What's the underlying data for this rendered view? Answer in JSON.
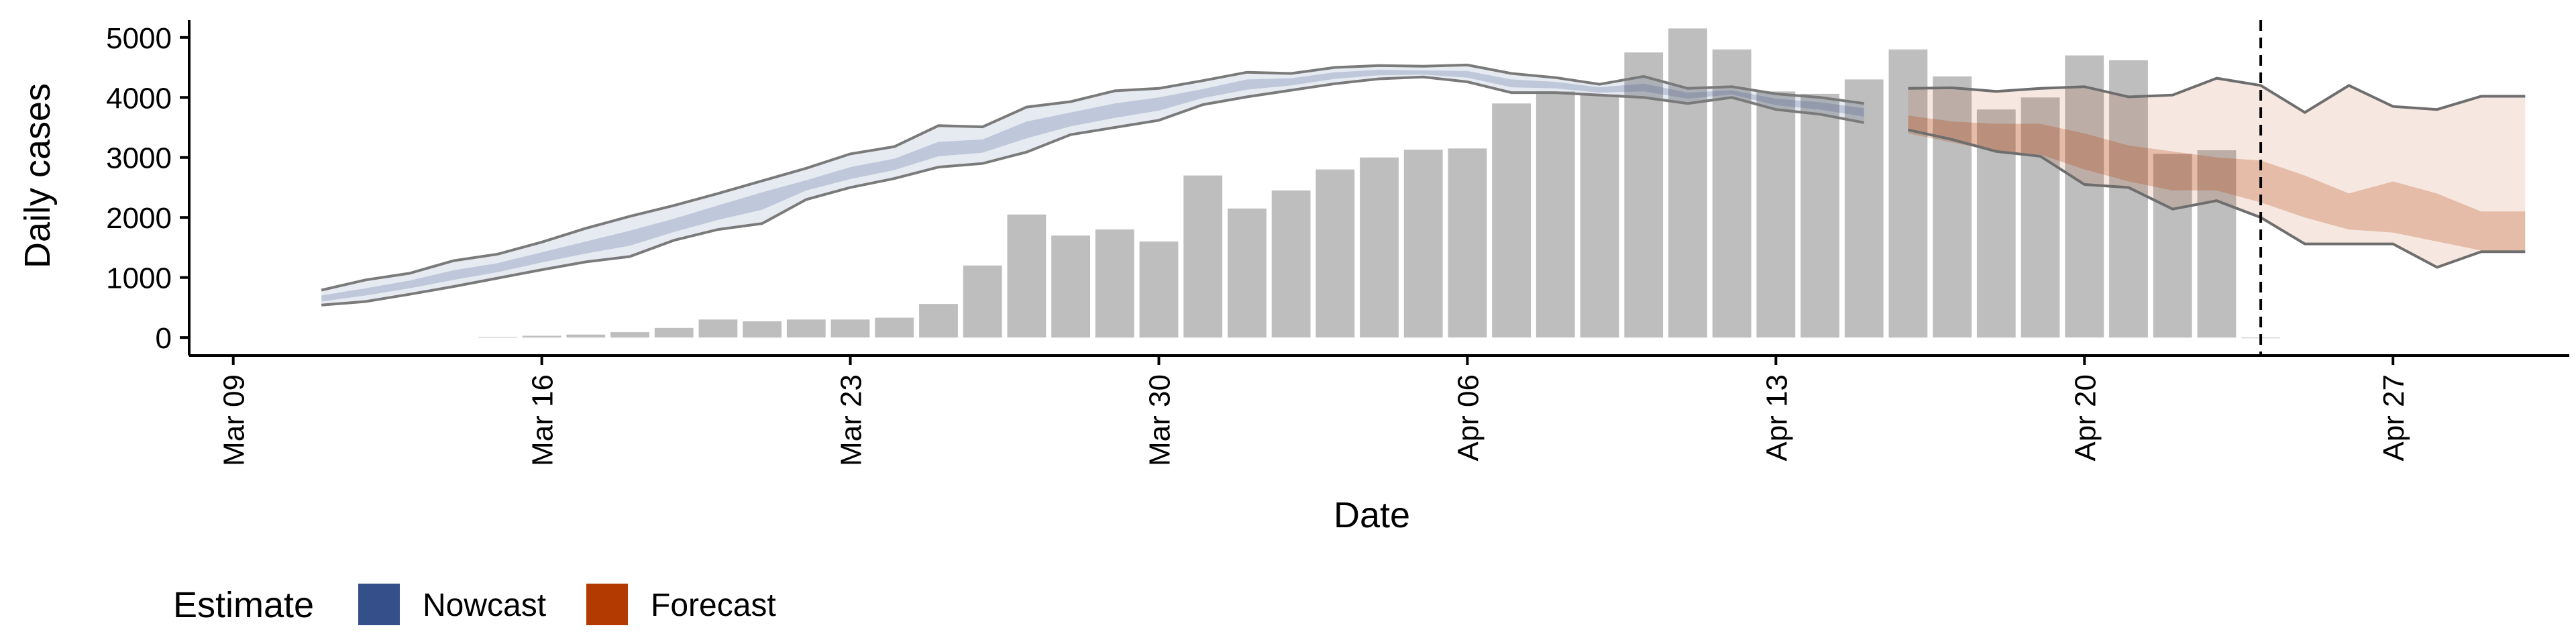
{
  "chart_data": {
    "type": "bar",
    "title": "",
    "xlabel": "Date",
    "ylabel": "Daily cases",
    "x_ticks": [
      "Mar 09",
      "Mar 16",
      "Mar 23",
      "Mar 30",
      "Apr 06",
      "Apr 13",
      "Apr 20",
      "Apr 27"
    ],
    "y_ticks": [
      0,
      1000,
      2000,
      3000,
      4000,
      5000
    ],
    "ylim": [
      -300,
      5400
    ],
    "xlim": [
      "2020-03-08",
      "2020-05-01"
    ],
    "grid": false,
    "legend": {
      "title": "Estimate",
      "position": "bottom-left",
      "entries": [
        {
          "label": "Nowcast",
          "color": "#354f8a"
        },
        {
          "label": "Forecast",
          "color": "#b33a00"
        }
      ]
    },
    "reference_line": {
      "date": "2020-04-24",
      "style": "dashed"
    },
    "bars": {
      "color": "#bebebe",
      "dates": [
        "2020-03-15",
        "2020-03-16",
        "2020-03-17",
        "2020-03-18",
        "2020-03-19",
        "2020-03-20",
        "2020-03-21",
        "2020-03-22",
        "2020-03-23",
        "2020-03-24",
        "2020-03-25",
        "2020-03-26",
        "2020-03-27",
        "2020-03-28",
        "2020-03-29",
        "2020-03-30",
        "2020-03-31",
        "2020-04-01",
        "2020-04-02",
        "2020-04-03",
        "2020-04-04",
        "2020-04-05",
        "2020-04-06",
        "2020-04-07",
        "2020-04-08",
        "2020-04-09",
        "2020-04-10",
        "2020-04-11",
        "2020-04-12",
        "2020-04-13",
        "2020-04-14",
        "2020-04-15",
        "2020-04-16",
        "2020-04-17",
        "2020-04-18",
        "2020-04-19",
        "2020-04-20",
        "2020-04-21",
        "2020-04-22",
        "2020-04-23",
        "2020-04-24"
      ],
      "values": [
        10,
        30,
        50,
        90,
        160,
        300,
        270,
        300,
        300,
        330,
        560,
        1200,
        2050,
        1700,
        1800,
        1600,
        2700,
        2150,
        2450,
        2800,
        3000,
        3130,
        3150,
        3900,
        4100,
        4050,
        4750,
        5150,
        4800,
        4100,
        4060,
        4300,
        4800,
        4350,
        3800,
        4000,
        4700,
        4620,
        3060,
        3120,
        0
      ]
    },
    "nowcast": {
      "dates": [
        "2020-03-11",
        "2020-03-12",
        "2020-03-13",
        "2020-03-14",
        "2020-03-15",
        "2020-03-16",
        "2020-03-17",
        "2020-03-18",
        "2020-03-19",
        "2020-03-20",
        "2020-03-21",
        "2020-03-22",
        "2020-03-23",
        "2020-03-24",
        "2020-03-25",
        "2020-03-26",
        "2020-03-27",
        "2020-03-28",
        "2020-03-29",
        "2020-03-30",
        "2020-03-31",
        "2020-04-01",
        "2020-04-02",
        "2020-04-03",
        "2020-04-04",
        "2020-04-05",
        "2020-04-06",
        "2020-04-07",
        "2020-04-08",
        "2020-04-09",
        "2020-04-10",
        "2020-04-11",
        "2020-04-12",
        "2020-04-13",
        "2020-04-14",
        "2020-04-15"
      ],
      "upper": [
        790,
        960,
        1070,
        1280,
        1390,
        1590,
        1820,
        2020,
        2200,
        2400,
        2610,
        2820,
        3060,
        3180,
        3530,
        3510,
        3840,
        3930,
        4110,
        4150,
        4280,
        4420,
        4400,
        4500,
        4530,
        4520,
        4540,
        4400,
        4330,
        4220,
        4350,
        4150,
        4180,
        4060,
        4000,
        3900
      ],
      "lower": [
        540,
        600,
        720,
        850,
        990,
        1130,
        1260,
        1350,
        1620,
        1800,
        1900,
        2300,
        2500,
        2650,
        2840,
        2900,
        3090,
        3380,
        3500,
        3620,
        3880,
        4010,
        4120,
        4230,
        4310,
        4340,
        4260,
        4080,
        4080,
        4040,
        4000,
        3900,
        4000,
        3800,
        3720,
        3580
      ],
      "mid_upper": [
        700,
        820,
        950,
        1120,
        1240,
        1420,
        1600,
        1780,
        1980,
        2200,
        2420,
        2620,
        2840,
        2980,
        3260,
        3300,
        3600,
        3750,
        3900,
        4000,
        4140,
        4300,
        4320,
        4420,
        4460,
        4450,
        4440,
        4300,
        4260,
        4170,
        4230,
        4080,
        4120,
        3980,
        3920,
        3820
      ],
      "mid_lower": [
        600,
        700,
        820,
        960,
        1090,
        1250,
        1400,
        1530,
        1760,
        1960,
        2130,
        2450,
        2640,
        2790,
        3020,
        3080,
        3320,
        3520,
        3660,
        3780,
        3990,
        4130,
        4200,
        4310,
        4370,
        4380,
        4330,
        4170,
        4150,
        4080,
        4100,
        3980,
        4050,
        3870,
        3800,
        3680
      ]
    },
    "forecast": {
      "dates": [
        "2020-04-16",
        "2020-04-17",
        "2020-04-18",
        "2020-04-19",
        "2020-04-20",
        "2020-04-21",
        "2020-04-22",
        "2020-04-23",
        "2020-04-24",
        "2020-04-25",
        "2020-04-26",
        "2020-04-27",
        "2020-04-28",
        "2020-04-29",
        "2020-04-30"
      ],
      "upper": [
        4150,
        4160,
        4100,
        4150,
        4180,
        4010,
        4040,
        4320,
        4200,
        3750,
        4200,
        3850,
        3800,
        4020,
        4020
      ],
      "lower": [
        3460,
        3300,
        3100,
        3020,
        2550,
        2500,
        2140,
        2280,
        2000,
        1560,
        1560,
        1560,
        1170,
        1430,
        1430
      ],
      "mid_upper": [
        3700,
        3600,
        3560,
        3560,
        3400,
        3200,
        3100,
        3000,
        2950,
        2700,
        2400,
        2600,
        2400,
        2100,
        2100
      ],
      "mid_lower": [
        3400,
        3250,
        3100,
        3050,
        2800,
        2600,
        2450,
        2450,
        2250,
        2000,
        1800,
        1750,
        1600,
        1450,
        1450
      ]
    }
  }
}
